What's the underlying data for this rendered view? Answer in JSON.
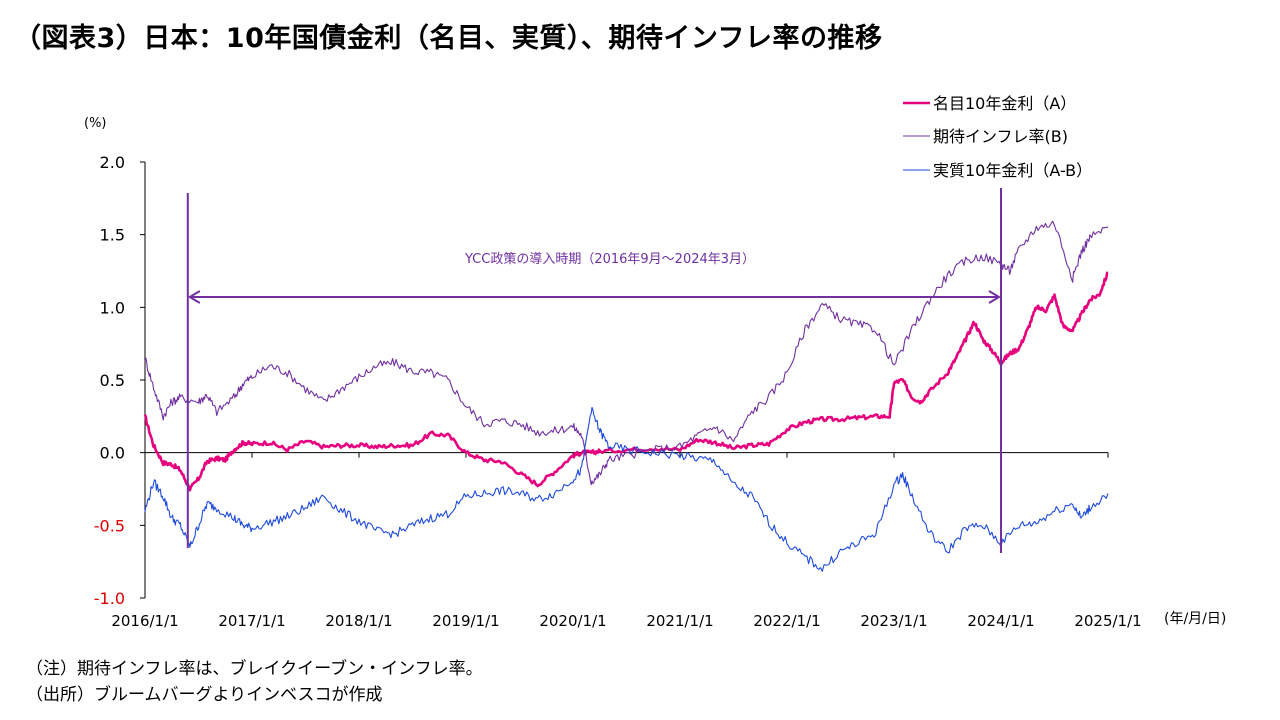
{
  "title": "（図表3）日本：10年国債金利（名目、実質）、期待インフレ率の推移",
  "notes": {
    "note1": "（注）期待インフレ率は、ブレイクイーブン・インフレ率。",
    "note2": "（出所）ブルームバーグよりインベスコが作成"
  },
  "chart_data": {
    "type": "line",
    "title": "日本：10年国債金利（名目、実質）、期待インフレ率の推移",
    "ylabel": "(%)",
    "xlabel": "(年/月/日)",
    "ylim": [
      -1.0,
      2.0
    ],
    "xlim": [
      2016.0,
      2025.0
    ],
    "yticks": [
      2.0,
      1.5,
      1.0,
      0.5,
      0.0,
      -0.5,
      -1.0
    ],
    "ytick_labels": [
      "2.0",
      "1.5",
      "1.0",
      "0.5",
      "0.0",
      "-0.5",
      "-1.0"
    ],
    "xticks": [
      2016,
      2017,
      2018,
      2019,
      2020,
      2021,
      2022,
      2023,
      2024,
      2025
    ],
    "xtick_labels": [
      "2016/1/1",
      "2017/1/1",
      "2018/1/1",
      "2019/1/1",
      "2020/1/1",
      "2021/1/1",
      "2022/1/1",
      "2023/1/1",
      "2024/1/1",
      "2025/1/1"
    ],
    "legend_position": "top-right",
    "annotation": {
      "text": "YCC政策の導入時期（2016年9月～2024年3月）",
      "start": 2016.4,
      "end": 2024.0
    },
    "series": [
      {
        "name": "名目10年金利（A）",
        "color": "#e6007e",
        "x": [
          2016.0,
          2016.08,
          2016.17,
          2016.25,
          2016.33,
          2016.42,
          2016.5,
          2016.58,
          2016.67,
          2016.75,
          2016.83,
          2016.92,
          2017.0,
          2017.17,
          2017.33,
          2017.5,
          2017.67,
          2017.83,
          2018.0,
          2018.17,
          2018.33,
          2018.5,
          2018.67,
          2018.83,
          2019.0,
          2019.17,
          2019.33,
          2019.5,
          2019.67,
          2019.83,
          2020.0,
          2020.08,
          2020.17,
          2020.25,
          2020.5,
          2020.75,
          2021.0,
          2021.17,
          2021.33,
          2021.5,
          2021.67,
          2021.83,
          2022.0,
          2022.17,
          2022.33,
          2022.5,
          2022.67,
          2022.83,
          2022.96,
          2023.0,
          2023.08,
          2023.17,
          2023.25,
          2023.33,
          2023.5,
          2023.58,
          2023.67,
          2023.75,
          2023.83,
          2023.92,
          2024.0,
          2024.08,
          2024.17,
          2024.25,
          2024.33,
          2024.42,
          2024.5,
          2024.58,
          2024.67,
          2024.75,
          2024.83,
          2024.92,
          2025.0
        ],
        "values": [
          0.25,
          0.05,
          -0.07,
          -0.08,
          -0.12,
          -0.25,
          -0.18,
          -0.06,
          -0.04,
          -0.05,
          0.02,
          0.07,
          0.06,
          0.07,
          0.02,
          0.08,
          0.04,
          0.05,
          0.05,
          0.04,
          0.05,
          0.05,
          0.13,
          0.12,
          0.0,
          -0.05,
          -0.06,
          -0.14,
          -0.22,
          -0.13,
          -0.02,
          0.0,
          0.0,
          0.01,
          0.02,
          0.03,
          0.02,
          0.09,
          0.07,
          0.03,
          0.05,
          0.06,
          0.16,
          0.21,
          0.23,
          0.23,
          0.24,
          0.25,
          0.25,
          0.48,
          0.5,
          0.38,
          0.35,
          0.42,
          0.55,
          0.65,
          0.78,
          0.9,
          0.78,
          0.7,
          0.62,
          0.68,
          0.72,
          0.85,
          1.0,
          0.98,
          1.08,
          0.87,
          0.84,
          0.95,
          1.05,
          1.09,
          1.24
        ]
      },
      {
        "name": "期待インフレ率(B)",
        "color": "#7030a0",
        "x": [
          2016.0,
          2016.08,
          2016.17,
          2016.25,
          2016.33,
          2016.5,
          2016.58,
          2016.67,
          2016.83,
          2016.92,
          2017.0,
          2017.17,
          2017.33,
          2017.5,
          2017.67,
          2017.83,
          2018.0,
          2018.17,
          2018.33,
          2018.5,
          2018.67,
          2018.83,
          2019.0,
          2019.17,
          2019.33,
          2019.5,
          2019.67,
          2019.83,
          2020.0,
          2020.08,
          2020.17,
          2020.25,
          2020.33,
          2020.5,
          2020.75,
          2021.0,
          2021.17,
          2021.33,
          2021.5,
          2021.67,
          2021.83,
          2022.0,
          2022.17,
          2022.33,
          2022.5,
          2022.67,
          2022.83,
          2023.0,
          2023.17,
          2023.33,
          2023.5,
          2023.67,
          2023.83,
          2024.0,
          2024.08,
          2024.17,
          2024.33,
          2024.5,
          2024.67,
          2024.75,
          2024.83,
          2025.0
        ],
        "values": [
          0.65,
          0.45,
          0.25,
          0.35,
          0.38,
          0.35,
          0.4,
          0.28,
          0.38,
          0.48,
          0.52,
          0.6,
          0.55,
          0.44,
          0.35,
          0.44,
          0.52,
          0.6,
          0.62,
          0.56,
          0.55,
          0.5,
          0.32,
          0.2,
          0.22,
          0.2,
          0.14,
          0.15,
          0.18,
          0.12,
          -0.2,
          -0.15,
          -0.05,
          -0.02,
          0.02,
          0.04,
          0.12,
          0.18,
          0.08,
          0.28,
          0.38,
          0.55,
          0.85,
          1.02,
          0.92,
          0.88,
          0.85,
          0.6,
          0.85,
          1.05,
          1.22,
          1.32,
          1.35,
          1.3,
          1.25,
          1.4,
          1.55,
          1.58,
          1.2,
          1.38,
          1.48,
          1.55
        ]
      },
      {
        "name": "実質10年金利（A-B）",
        "color": "#1f4bdb",
        "x": [
          2016.0,
          2016.08,
          2016.17,
          2016.25,
          2016.33,
          2016.42,
          2016.5,
          2016.58,
          2016.67,
          2016.83,
          2016.92,
          2017.0,
          2017.17,
          2017.33,
          2017.5,
          2017.67,
          2017.83,
          2018.0,
          2018.17,
          2018.33,
          2018.5,
          2018.67,
          2018.83,
          2019.0,
          2019.17,
          2019.33,
          2019.5,
          2019.67,
          2019.83,
          2020.0,
          2020.08,
          2020.17,
          2020.25,
          2020.33,
          2020.5,
          2020.75,
          2021.0,
          2021.17,
          2021.33,
          2021.5,
          2021.67,
          2021.83,
          2022.0,
          2022.17,
          2022.33,
          2022.5,
          2022.67,
          2022.83,
          2023.0,
          2023.08,
          2023.17,
          2023.33,
          2023.5,
          2023.67,
          2023.83,
          2024.0,
          2024.17,
          2024.33,
          2024.5,
          2024.67,
          2024.75,
          2024.83,
          2025.0
        ],
        "values": [
          -0.4,
          -0.2,
          -0.3,
          -0.45,
          -0.5,
          -0.65,
          -0.5,
          -0.35,
          -0.38,
          -0.45,
          -0.5,
          -0.52,
          -0.48,
          -0.44,
          -0.38,
          -0.3,
          -0.4,
          -0.47,
          -0.54,
          -0.56,
          -0.5,
          -0.45,
          -0.42,
          -0.3,
          -0.28,
          -0.26,
          -0.28,
          -0.32,
          -0.28,
          -0.18,
          -0.12,
          0.3,
          0.15,
          0.05,
          0.02,
          0.0,
          -0.02,
          -0.04,
          -0.06,
          -0.22,
          -0.3,
          -0.48,
          -0.62,
          -0.72,
          -0.8,
          -0.68,
          -0.62,
          -0.55,
          -0.22,
          -0.15,
          -0.3,
          -0.55,
          -0.68,
          -0.52,
          -0.5,
          -0.62,
          -0.5,
          -0.48,
          -0.4,
          -0.35,
          -0.45,
          -0.38,
          -0.28
        ]
      }
    ]
  }
}
